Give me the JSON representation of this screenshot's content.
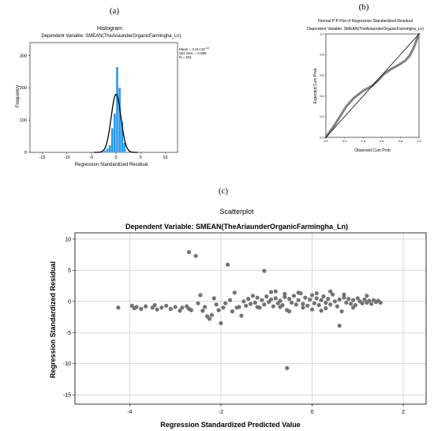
{
  "chart_data": [
    {
      "panel_label": "(a)",
      "type": "bar",
      "title": "Histogram",
      "subtitle": "Dependent Variable: SMEAN(TheAriaunderOrganicFarmingha_Ln)",
      "xlabel": "Regression Standardized Residual",
      "ylabel": "Frequency",
      "xlim": [
        -17.5,
        12.5
      ],
      "ylim": [
        0,
        340
      ],
      "xticks": [
        -15,
        -10,
        -5,
        0,
        5,
        10
      ],
      "yticks": [
        0,
        100,
        200,
        300
      ],
      "xtick_labels": [
        "-15",
        "-10",
        "-5",
        "0",
        "5",
        "10"
      ],
      "ytick_labels": [
        "0",
        "100",
        "200",
        "300"
      ],
      "bin_width": 0.5,
      "bins": [
        {
          "x0": -3.0,
          "value": 2
        },
        {
          "x0": -2.5,
          "value": 6
        },
        {
          "x0": -2.0,
          "value": 12
        },
        {
          "x0": -1.5,
          "value": 22
        },
        {
          "x0": -1.0,
          "value": 75
        },
        {
          "x0": -0.5,
          "value": 120
        },
        {
          "x0": 0.0,
          "value": 265
        },
        {
          "x0": 0.5,
          "value": 200
        },
        {
          "x0": 1.0,
          "value": 95
        },
        {
          "x0": 1.5,
          "value": 30
        }
      ],
      "normal_curve": {
        "mean": 0,
        "sd": 0.99,
        "peak": 180
      },
      "stats": {
        "mean": "Mean = 2.01×10",
        "mean_exp": "-14",
        "sd": "Std. Dev. = 0.990",
        "n": "N = 621"
      },
      "colors": {
        "bars": "#2196f3",
        "curve": "#000000"
      }
    },
    {
      "panel_label": "(b)",
      "type": "line",
      "title": "Normal P-P Plot of Regression Standardized Residual",
      "subtitle": "Dependent Variable: SMEAN(TheAriaunderOrganicFarmingha_Ln)",
      "xlabel": "Observed Cum Prob",
      "ylabel": "Expected Cum Prob",
      "xlim": [
        0,
        1
      ],
      "ylim": [
        0,
        1
      ],
      "xticks": [
        0,
        0.2,
        0.4,
        0.6,
        0.8,
        1.0
      ],
      "yticks": [
        0,
        0.2,
        0.4,
        0.6,
        0.8,
        1.0
      ],
      "xtick_labels": [
        "0.0",
        "0.2",
        "0.4",
        "0.6",
        "0.8",
        "1.0"
      ],
      "ytick_labels": [
        "0.0",
        "0.2",
        "0.4",
        "0.6",
        "0.8",
        "1.0"
      ],
      "series": [
        {
          "x": [
            0.0,
            0.03,
            0.08,
            0.15,
            0.22,
            0.3,
            0.4,
            0.5,
            0.56,
            0.62,
            0.7,
            0.78,
            0.85,
            0.9,
            0.94,
            0.97,
            0.99,
            1.0
          ],
          "y": [
            0.0,
            0.04,
            0.1,
            0.2,
            0.3,
            0.38,
            0.45,
            0.5,
            0.55,
            0.61,
            0.66,
            0.7,
            0.74,
            0.79,
            0.86,
            0.93,
            0.98,
            1.0
          ]
        }
      ],
      "reference_line": [
        [
          0,
          0
        ],
        [
          1,
          1
        ]
      ],
      "colors": {
        "points": "#7f7f7f",
        "reference": "#000000"
      }
    },
    {
      "panel_label": "(c)",
      "type": "scatter",
      "title": "Scatterplot",
      "subtitle": "Dependent Variable: SMEAN(TheAriaunderOrganicFarmingha_Ln)",
      "xlabel": "Regression Standardized Predicted Value",
      "ylabel": "Regression Standardized Residual",
      "xlim": [
        -5.2,
        2.5
      ],
      "ylim": [
        -16.5,
        11
      ],
      "xticks": [
        -4,
        -2,
        0,
        2
      ],
      "yticks": [
        -15,
        -10,
        -5,
        0,
        5,
        10
      ],
      "xtick_labels": [
        "-4",
        "-2",
        "0",
        "2"
      ],
      "ytick_labels": [
        "-15",
        "-10",
        "-5",
        "0",
        "5",
        "10"
      ],
      "grid": true,
      "points": [
        [
          -4.25,
          -1.0
        ],
        [
          -3.95,
          -0.7
        ],
        [
          -3.9,
          -1.1
        ],
        [
          -3.85,
          -0.9
        ],
        [
          -3.75,
          -1.2
        ],
        [
          -3.65,
          -0.8
        ],
        [
          -3.5,
          -1.0
        ],
        [
          -3.45,
          -0.6
        ],
        [
          -3.4,
          -1.3
        ],
        [
          -3.3,
          -1.0
        ],
        [
          -3.2,
          -0.7
        ],
        [
          -3.1,
          -1.2
        ],
        [
          -3.0,
          -0.9
        ],
        [
          -2.9,
          -1.5
        ],
        [
          -2.85,
          -1.0
        ],
        [
          -2.75,
          -0.8
        ],
        [
          -2.7,
          -1.2
        ],
        [
          -2.65,
          -1.4
        ],
        [
          -2.5,
          -0.3
        ],
        [
          -2.4,
          -1.5
        ],
        [
          -2.35,
          -0.9
        ],
        [
          -2.3,
          -2.4
        ],
        [
          -2.25,
          -2.8
        ],
        [
          -2.2,
          -2.2
        ],
        [
          -2.15,
          0.5
        ],
        [
          -2.1,
          -0.5
        ],
        [
          -2.05,
          -1.4
        ],
        [
          -2.0,
          -3.5
        ],
        [
          -1.95,
          -1.0
        ],
        [
          -1.9,
          -0.3
        ],
        [
          -1.8,
          0.2
        ],
        [
          -1.75,
          -1.6
        ],
        [
          -1.7,
          1.4
        ],
        [
          -1.6,
          -0.9
        ],
        [
          -1.55,
          -2.3
        ],
        [
          -1.5,
          0.0
        ],
        [
          -1.45,
          -0.7
        ],
        [
          -1.4,
          0.4
        ],
        [
          -1.35,
          -0.4
        ],
        [
          -1.3,
          0.9
        ],
        [
          -1.25,
          -0.2
        ],
        [
          -1.2,
          0.6
        ],
        [
          -1.15,
          -1.0
        ],
        [
          -1.1,
          0.2
        ],
        [
          -1.05,
          -0.5
        ],
        [
          -1.0,
          0.8
        ],
        [
          -0.95,
          -0.1
        ],
        [
          -0.9,
          0.3
        ],
        [
          -0.85,
          -0.8
        ],
        [
          -0.8,
          0.5
        ],
        [
          -0.75,
          -0.3
        ],
        [
          -0.7,
          0.1
        ],
        [
          -0.65,
          -0.6
        ],
        [
          -0.6,
          0.7
        ],
        [
          -0.55,
          -1.4
        ],
        [
          -0.5,
          0.4
        ],
        [
          -0.45,
          -0.2
        ],
        [
          -0.4,
          0.9
        ],
        [
          -0.35,
          -0.5
        ],
        [
          -0.3,
          0.2
        ],
        [
          -0.25,
          1.3
        ],
        [
          -0.2,
          -0.4
        ],
        [
          -0.15,
          0.6
        ],
        [
          -0.1,
          -0.7
        ],
        [
          -0.05,
          0.3
        ],
        [
          0.0,
          1.0
        ],
        [
          0.05,
          -0.3
        ],
        [
          0.1,
          0.5
        ],
        [
          0.15,
          -0.6
        ],
        [
          0.2,
          0.2
        ],
        [
          0.25,
          0.8
        ],
        [
          0.3,
          -0.2
        ],
        [
          0.35,
          0.4
        ],
        [
          0.4,
          -0.5
        ],
        [
          0.45,
          1.1
        ],
        [
          0.5,
          0.0
        ],
        [
          0.55,
          -0.8
        ],
        [
          0.6,
          0.3
        ],
        [
          0.65,
          -1.6
        ],
        [
          0.7,
          0.6
        ],
        [
          0.75,
          -0.2
        ],
        [
          0.8,
          0.4
        ],
        [
          0.85,
          -0.4
        ],
        [
          0.9,
          0.2
        ],
        [
          0.95,
          -0.6
        ],
        [
          1.0,
          0.5
        ],
        [
          1.05,
          0.0
        ],
        [
          1.1,
          -0.3
        ],
        [
          1.15,
          0.3
        ],
        [
          1.2,
          -0.2
        ],
        [
          1.25,
          0.1
        ],
        [
          1.3,
          -0.4
        ],
        [
          1.35,
          0.2
        ],
        [
          1.4,
          -0.1
        ],
        [
          1.45,
          0.1
        ],
        [
          1.5,
          -0.2
        ],
        [
          -0.9,
          1.5
        ],
        [
          -0.6,
          1.2
        ],
        [
          -0.3,
          1.4
        ],
        [
          0.1,
          1.3
        ],
        [
          0.4,
          1.6
        ],
        [
          0.7,
          1.1
        ],
        [
          -0.7,
          -0.9
        ],
        [
          -0.2,
          -1.0
        ],
        [
          0.3,
          -1.1
        ],
        [
          0.9,
          -1.0
        ],
        [
          -0.5,
          -1.6
        ],
        [
          0.2,
          -1.5
        ],
        [
          -2.7,
          7.9
        ],
        [
          -2.55,
          7.3
        ],
        [
          -1.85,
          5.9
        ],
        [
          -1.05,
          4.9
        ],
        [
          -0.55,
          -10.7
        ],
        [
          0.6,
          -3.9
        ],
        [
          -2.45,
          1.0
        ],
        [
          -1.65,
          -1.0
        ],
        [
          -0.8,
          1.6
        ],
        [
          1.2,
          0.9
        ],
        [
          0.0,
          -1.3
        ],
        [
          -1.2,
          -0.9
        ]
      ],
      "colors": {
        "points": "#737373",
        "grid": "#bfbfbf"
      }
    }
  ]
}
